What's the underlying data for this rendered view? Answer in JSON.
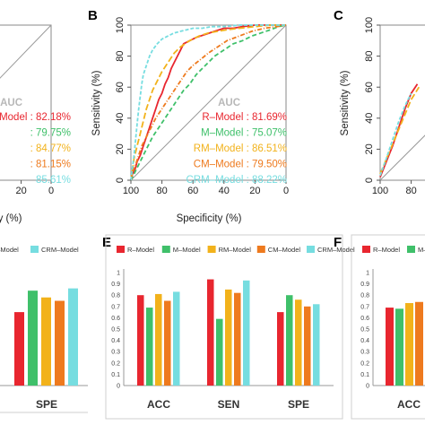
{
  "colors": {
    "r": "#e8262f",
    "m": "#3fc06a",
    "rm": "#f2b21b",
    "cm": "#ee7a1e",
    "crm": "#76dde0",
    "auc_title": "#b8b8b8"
  },
  "chart_data": [
    {
      "panel": "A",
      "type": "line",
      "auc_title": "AUC",
      "xlabel": "Specificity (%)",
      "x_ticks": [
        "20",
        "0"
      ],
      "auc_lines": [
        {
          "text": "R–Model : 82.18%",
          "color_key": "r"
        },
        {
          "text": ": 79.75%",
          "color_key": "m"
        },
        {
          "text": ": 84.77%",
          "color_key": "rm"
        },
        {
          "text": ": 81.15%",
          "color_key": "cm"
        },
        {
          "text": "85.61%",
          "color_key": "crm"
        }
      ],
      "series": [
        {
          "color_key": "r",
          "x": [
            100,
            96,
            92,
            88
          ],
          "y": [
            96,
            98,
            99,
            100
          ]
        },
        {
          "color_key": "crm",
          "x": [
            100,
            95,
            90
          ],
          "y": [
            97,
            99,
            100
          ]
        }
      ],
      "legend_partial": [
        {
          "label": "M–Model",
          "color_key": "m"
        },
        {
          "label": "CRM–Model",
          "color_key": "crm"
        }
      ],
      "bar_categories": [
        "SPE"
      ],
      "bar_values": [
        {
          "color_key": "r",
          "value": 0.65
        },
        {
          "color_key": "m",
          "value": 0.84
        },
        {
          "color_key": "rm",
          "value": 0.78
        },
        {
          "color_key": "cm",
          "value": 0.75
        },
        {
          "color_key": "crm",
          "value": 0.86
        }
      ]
    },
    {
      "panel": "B",
      "type": "line",
      "xlabel": "Specificity (%)",
      "ylabel": "Sensitivity (%)",
      "xlim": [
        100,
        0
      ],
      "ylim": [
        0,
        100
      ],
      "x_ticks": [
        "100",
        "80",
        "60",
        "40",
        "20",
        "0"
      ],
      "y_ticks": [
        "0",
        "20",
        "40",
        "60",
        "80",
        "100"
      ],
      "auc_title": "AUC",
      "auc_lines": [
        {
          "text": "R–Model : 81.69%",
          "color_key": "r"
        },
        {
          "text": "M–Model : 75.07%",
          "color_key": "m"
        },
        {
          "text": "RM–Model : 86.51%",
          "color_key": "rm"
        },
        {
          "text": "CM–Model : 79.50%",
          "color_key": "cm"
        },
        {
          "text": "CRM–Model : 88.22%",
          "color_key": "crm"
        }
      ],
      "series": [
        {
          "name": "R-Model",
          "color_key": "r",
          "x": [
            100,
            99,
            97,
            96,
            94,
            92,
            90,
            88,
            86,
            84,
            82,
            80,
            78,
            76,
            74,
            72,
            70,
            68,
            66,
            62,
            58,
            52,
            46,
            40,
            34,
            28,
            20,
            10,
            0
          ],
          "y": [
            0,
            4,
            8,
            12,
            16,
            22,
            28,
            34,
            40,
            46,
            52,
            56,
            62,
            66,
            72,
            76,
            80,
            84,
            88,
            90,
            92,
            94,
            96,
            98,
            98,
            99,
            100,
            100,
            100
          ]
        },
        {
          "name": "M-Model",
          "color_key": "m",
          "x": [
            100,
            98,
            96,
            94,
            92,
            89,
            86,
            82,
            78,
            74,
            70,
            66,
            62,
            58,
            54,
            50,
            46,
            40,
            34,
            28,
            22,
            16,
            10,
            5,
            0
          ],
          "y": [
            0,
            4,
            8,
            12,
            16,
            22,
            28,
            34,
            40,
            46,
            52,
            58,
            62,
            68,
            72,
            76,
            80,
            84,
            88,
            90,
            93,
            95,
            97,
            99,
            100
          ]
        },
        {
          "name": "RM-Model",
          "color_key": "rm",
          "x": [
            100,
            99,
            98,
            96,
            94,
            92,
            90,
            88,
            86,
            83,
            80,
            76,
            72,
            68,
            62,
            56,
            50,
            44,
            38,
            30,
            20,
            10,
            0
          ],
          "y": [
            0,
            6,
            14,
            22,
            30,
            38,
            46,
            52,
            58,
            64,
            70,
            76,
            82,
            86,
            90,
            93,
            95,
            96,
            97,
            98,
            99,
            100,
            100
          ]
        },
        {
          "name": "CM-Model",
          "color_key": "cm",
          "x": [
            100,
            99,
            97,
            95,
            93,
            90,
            87,
            84,
            80,
            76,
            72,
            68,
            64,
            60,
            55,
            50,
            44,
            38,
            30,
            22,
            14,
            6,
            0
          ],
          "y": [
            0,
            5,
            10,
            16,
            22,
            28,
            34,
            40,
            46,
            52,
            58,
            64,
            70,
            74,
            78,
            82,
            86,
            90,
            93,
            96,
            98,
            99,
            100
          ]
        },
        {
          "name": "CRM-Model",
          "color_key": "crm",
          "x": [
            100,
            99,
            98,
            97,
            96,
            95,
            94,
            93,
            92,
            90,
            88,
            86,
            83,
            80,
            76,
            72,
            68,
            64,
            60,
            54,
            48,
            40,
            30,
            20,
            10,
            0
          ],
          "y": [
            0,
            8,
            16,
            26,
            36,
            46,
            54,
            62,
            68,
            74,
            80,
            84,
            88,
            91,
            93,
            95,
            96,
            97,
            98,
            98,
            99,
            99,
            100,
            100,
            100,
            100
          ]
        }
      ]
    },
    {
      "panel": "C",
      "type": "line",
      "ylabel": "Sensitivity (%)",
      "x_ticks": [
        "100",
        "80"
      ],
      "y_ticks": [
        "0",
        "20",
        "40",
        "60",
        "80",
        "100"
      ],
      "series": [
        {
          "color_key": "r",
          "x": [
            100,
            96,
            92,
            88,
            84,
            80,
            76
          ],
          "y": [
            2,
            12,
            22,
            34,
            46,
            56,
            62
          ]
        },
        {
          "color_key": "rm",
          "x": [
            100,
            95,
            90,
            85,
            80,
            75
          ],
          "y": [
            4,
            16,
            28,
            40,
            52,
            60
          ]
        },
        {
          "color_key": "crm",
          "x": [
            100,
            96,
            92,
            88,
            84,
            80
          ],
          "y": [
            3,
            14,
            26,
            38,
            48,
            56
          ]
        }
      ]
    },
    {
      "panel": "E",
      "type": "bar",
      "categories": [
        "ACC",
        "SEN",
        "SPE"
      ],
      "ylim": [
        0,
        1
      ],
      "y_ticks": [
        "0",
        "0.1",
        "0.2",
        "0.3",
        "0.4",
        "0.5",
        "0.6",
        "0.7",
        "0.8",
        "0.9",
        "1"
      ],
      "series": [
        {
          "name": "R-Model",
          "color_key": "r",
          "values": [
            0.8,
            0.94,
            0.65
          ]
        },
        {
          "name": "M-Model",
          "color_key": "m",
          "values": [
            0.69,
            0.59,
            0.8
          ]
        },
        {
          "name": "RM-Model",
          "color_key": "rm",
          "values": [
            0.81,
            0.85,
            0.76
          ]
        },
        {
          "name": "CM-Model",
          "color_key": "cm",
          "values": [
            0.75,
            0.82,
            0.7
          ]
        },
        {
          "name": "CRM-Model",
          "color_key": "crm",
          "values": [
            0.83,
            0.93,
            0.72
          ]
        }
      ]
    },
    {
      "panel": "F",
      "type": "bar",
      "categories": [
        "ACC"
      ],
      "ylim": [
        0,
        1
      ],
      "y_ticks": [
        "0",
        "0.1",
        "0.2",
        "0.3",
        "0.4",
        "0.5",
        "0.6",
        "0.7",
        "0.8",
        "0.9",
        "1"
      ],
      "legend_partial": [
        {
          "label": "R–Model",
          "color_key": "r"
        },
        {
          "label": "M–M",
          "color_key": "m"
        }
      ],
      "series": [
        {
          "color_key": "r",
          "values": [
            0.69
          ]
        },
        {
          "color_key": "m",
          "values": [
            0.68
          ]
        },
        {
          "color_key": "rm",
          "values": [
            0.73
          ]
        },
        {
          "color_key": "cm",
          "values": [
            0.74
          ]
        }
      ]
    }
  ],
  "panel_letters": {
    "b": "B",
    "c": "C",
    "e": "E",
    "f": "F"
  }
}
